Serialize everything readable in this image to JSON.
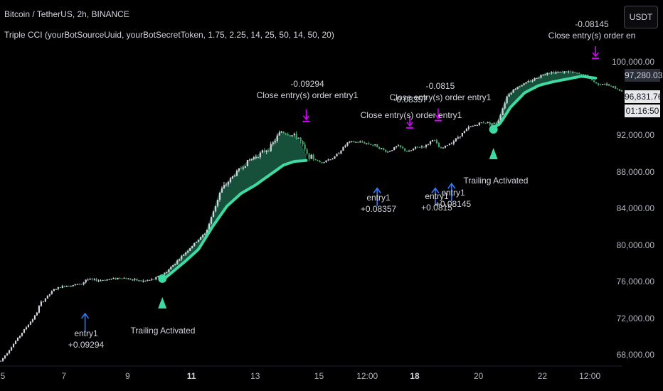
{
  "header": {
    "symbol_line": "Bitcoin / TetherUS, 2h, BINANCE",
    "indicator_line": "Triple CCI (yourBotSourceUuid, yourBotSecretToken, 1.75, 2.25, 14, 25, 50, 14, 50, 20)"
  },
  "currency_button": "USDT",
  "price_labels": {
    "mark": "97,280.03",
    "last": "96,831.76",
    "countdown": "01:16:50"
  },
  "annotations": {
    "entry_a": {
      "line1": "entry1",
      "line2": "+0.09294"
    },
    "trail_a": "Trailing Activated",
    "close_a": {
      "line1": "-0.09294",
      "line2": "Close entry(s) order entry1"
    },
    "entry_b": {
      "line1": "entry1",
      "line2": "+0.08357"
    },
    "close_b_overlap": "-0.08357",
    "close_b": {
      "line1": "",
      "line2": "Close entry(s) order entry1"
    },
    "close_c": {
      "line1": "-0.0815",
      "line2": "Close entry(s) order entry1"
    },
    "entry_c1": {
      "line1": "entry1",
      "line2": "+0.0815"
    },
    "entry_c2": {
      "line1": "entry1",
      "line2": "+0.08145"
    },
    "trail_b": "Trailing Activated",
    "close_d": {
      "line1": "-0.08145",
      "line2": "Close entry(s) order en"
    }
  },
  "chart_data": {
    "type": "line",
    "title": "Bitcoin / TetherUS, 2h, BINANCE",
    "xlabel": "",
    "ylabel": "",
    "ylim": [
      66500,
      101500
    ],
    "y_ticks": [
      "100,000.00",
      "92,000.00",
      "88,000.00",
      "84,000.00",
      "80,000.00",
      "76,000.00",
      "72,000.00",
      "68,000.00"
    ],
    "y_tick_values": [
      100000,
      92000,
      88000,
      84000,
      80000,
      76000,
      72000,
      68000
    ],
    "x_ticks": [
      "5",
      "7",
      "9",
      "11",
      "13",
      "15",
      "12:00",
      "18",
      "20",
      "22",
      "12:00"
    ],
    "x_ticks_bold": [
      false,
      false,
      false,
      true,
      false,
      false,
      false,
      true,
      false,
      false,
      false
    ],
    "x_tick_index": [
      0,
      90,
      180,
      270,
      360,
      450,
      518,
      585,
      675,
      765,
      832
    ],
    "series": [
      {
        "name": "",
        "anchors": [
          [
            0,
            67400
          ],
          [
            30,
            70500
          ],
          [
            50,
            72500
          ],
          [
            55,
            73600
          ],
          [
            75,
            75200
          ],
          [
            90,
            75600
          ],
          [
            100,
            75700
          ],
          [
            115,
            75800
          ],
          [
            120,
            76300
          ],
          [
            140,
            76200
          ],
          [
            170,
            76500
          ],
          [
            200,
            76100
          ],
          [
            215,
            76300
          ],
          [
            232,
            77000
          ],
          [
            260,
            79200
          ],
          [
            290,
            81500
          ],
          [
            310,
            86000
          ],
          [
            330,
            87800
          ],
          [
            350,
            89300
          ],
          [
            380,
            90700
          ],
          [
            395,
            92500
          ],
          [
            420,
            91800
          ],
          [
            432,
            89900
          ],
          [
            450,
            89100
          ],
          [
            470,
            89600
          ],
          [
            490,
            91300
          ],
          [
            510,
            91300
          ],
          [
            530,
            90900
          ],
          [
            545,
            90200
          ],
          [
            560,
            90900
          ],
          [
            575,
            90200
          ],
          [
            585,
            90700
          ],
          [
            600,
            90900
          ],
          [
            610,
            91700
          ],
          [
            620,
            90500
          ],
          [
            640,
            91500
          ],
          [
            660,
            92900
          ],
          [
            680,
            93500
          ],
          [
            700,
            93300
          ],
          [
            715,
            96500
          ],
          [
            730,
            97400
          ],
          [
            750,
            98100
          ],
          [
            770,
            98900
          ],
          [
            800,
            99000
          ],
          [
            825,
            98600
          ],
          [
            840,
            97700
          ],
          [
            850,
            97700
          ],
          [
            870,
            97100
          ],
          [
            877,
            96830
          ]
        ],
        "values_note": ""
      },
      {
        "name": "",
        "anchors": [
          [
            232,
            76400
          ],
          [
            260,
            78200
          ],
          [
            280,
            79600
          ],
          [
            300,
            82100
          ],
          [
            320,
            84300
          ],
          [
            340,
            85700
          ],
          [
            360,
            86600
          ],
          [
            380,
            87700
          ],
          [
            400,
            88800
          ],
          [
            415,
            89200
          ],
          [
            432,
            89300
          ],
          [
            692,
            92700
          ],
          [
            705,
            93300
          ],
          [
            720,
            95100
          ],
          [
            740,
            96700
          ],
          [
            760,
            97500
          ],
          [
            780,
            97900
          ],
          [
            800,
            98200
          ],
          [
            820,
            98500
          ],
          [
            840,
            98300
          ]
        ]
      }
    ],
    "markers": [
      {
        "kind": "entry",
        "index": 120,
        "price": 75300,
        "label": "entry1 +0.09294"
      },
      {
        "kind": "trail",
        "index": 229,
        "price": 76400,
        "label": "Trailing Activated"
      },
      {
        "kind": "close",
        "index": 432,
        "price": 92400,
        "label": "-0.09294 Close entry(s) order entry1"
      },
      {
        "kind": "entry",
        "index": 532,
        "price": 89000,
        "label": "entry1 +0.08357"
      },
      {
        "kind": "close",
        "index": 578,
        "price": 91700,
        "label": "-0.08357 Close entry(s) order entry1"
      },
      {
        "kind": "close",
        "index": 618,
        "price": 92500,
        "label": "-0.0815 Close entry(s) order entry1"
      },
      {
        "kind": "entry",
        "index": 614,
        "price": 89000,
        "label": "entry1 +0.0815"
      },
      {
        "kind": "entry",
        "index": 637,
        "price": 89500,
        "label": "entry1 +0.08145"
      },
      {
        "kind": "trail",
        "index": 696,
        "price": 92700,
        "label": "Trailing Activated"
      },
      {
        "kind": "close",
        "index": 840,
        "price": 99300,
        "label": "-0.08145 Close entry(s) order en"
      }
    ],
    "colors": {
      "up": "#d1d4dc",
      "down": "#42a66a",
      "trail_line": "#3fd9a4",
      "fill": "#1b5e44",
      "entry_arrow": "#3179f5",
      "close_arrow": "#d500f9",
      "marker": "#3fd9a4"
    },
    "last_price": 96831.76,
    "mark_price": 97280.03
  }
}
